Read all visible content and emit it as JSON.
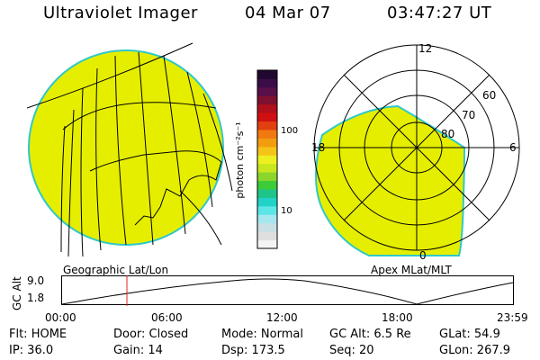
{
  "header": {
    "instrument": "Ultraviolet Imager",
    "date": "04 Mar 07",
    "time": "03:47:27 UT"
  },
  "geo_panel": {
    "caption": "Geographic Lat/Lon"
  },
  "colorbar": {
    "label": "photon cm⁻²s⁻¹",
    "ticks": [
      "100",
      "10"
    ],
    "colors": [
      "#f4f4f4",
      "#dfdfdf",
      "#c8e0e4",
      "#a6e7ef",
      "#5de6e8",
      "#22d2c8",
      "#1fc48a",
      "#3ccc3a",
      "#8ad62a",
      "#c8e61e",
      "#ecf020",
      "#f4c418",
      "#f29c10",
      "#f07a10",
      "#e24010",
      "#d01010",
      "#b0101a",
      "#7e1030",
      "#58104a",
      "#3c0c48",
      "#200830"
    ]
  },
  "polar_panel": {
    "caption": "Apex MLat/MLT",
    "mlt_labels": [
      "12",
      "6",
      "0",
      "18"
    ],
    "lat_labels": [
      "60",
      "70",
      "80"
    ]
  },
  "orbit": {
    "ylabel": "GC Alt",
    "y_ticks": [
      "9.0",
      "1.8"
    ],
    "x_ticks": [
      "00:00",
      "06:00",
      "12:00",
      "18:00",
      "23:59"
    ]
  },
  "status": {
    "row1": [
      "Flt: HOME",
      "Door: Closed",
      "Mode: Normal",
      "GC Alt: 6.5 Re",
      "GLat:  54.9"
    ],
    "row2": [
      "IP: 36.0",
      "Gain: 14",
      "Dsp:  173.5",
      "Seq: 20",
      "GLon: 267.9"
    ]
  },
  "colors": {
    "fill": "#e6ee00",
    "limb": "#30c8c8",
    "marker": "#e02020"
  }
}
